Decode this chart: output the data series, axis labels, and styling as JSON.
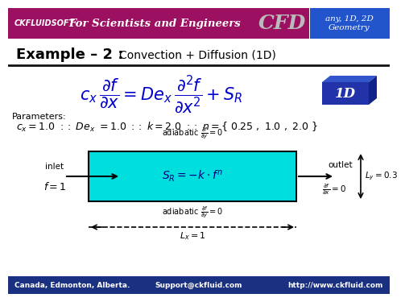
{
  "title_company": "CKFLUIDSOFT",
  "title_tagline": "For Scientists and Engineers",
  "title_right": "any, 1D, 2D\nGeometry",
  "example_title_big": "Example – 2 : ",
  "example_title_small": "Convection + Diffusion (1D)",
  "badge_text": "1D",
  "header_bg": "#9B1060",
  "header_fg": "#ffffff",
  "footer_bg": "#1a3080",
  "footer_fg": "#ffffff",
  "body_bg": "#ffffff",
  "box_fill": "#00dede",
  "box_edge": "#000000",
  "badge_bg": "#2233aa",
  "badge_fg": "#ffffff",
  "eq_color": "#0000cc",
  "footer_left": "Canada, Edmonton, Alberta.",
  "footer_center": "Support@ckfluid.com",
  "footer_right": "http://www.ckfluid.com",
  "box_label": "$S_R = -k\\cdot f^n$",
  "inlet_label": "inlet",
  "outlet_label": "outlet",
  "f_inlet": "$f=1$",
  "lx_label": "$L_x = 1$",
  "ly_label": "$L_y = 0.3$",
  "right_box_bg": "#2255cc"
}
